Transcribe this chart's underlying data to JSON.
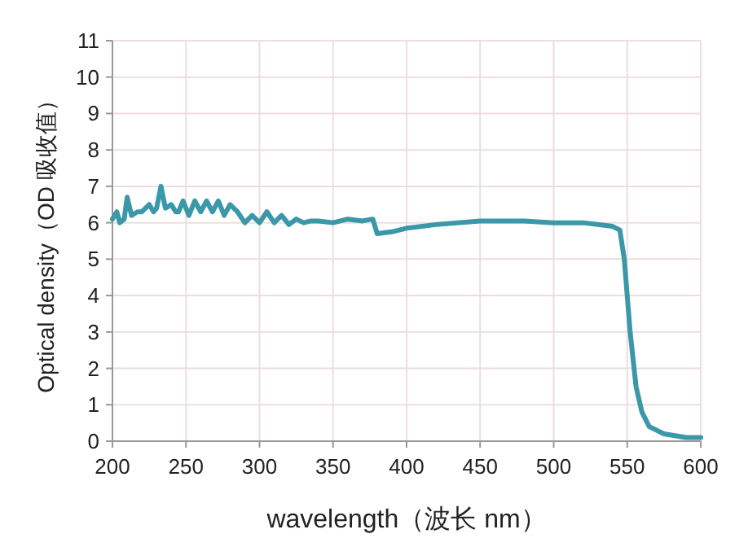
{
  "chart_data": {
    "type": "line",
    "xlabel": "wavelength（波长 nm）",
    "ylabel": "Optical density（OD 吸收值）",
    "xlim": [
      200,
      600
    ],
    "ylim": [
      0,
      11
    ],
    "xticks": [
      200,
      250,
      300,
      350,
      400,
      450,
      500,
      550,
      600
    ],
    "yticks": [
      0,
      1,
      2,
      3,
      4,
      5,
      6,
      7,
      8,
      9,
      10,
      11
    ],
    "grid": true,
    "series": [
      {
        "color": "#3b98a8",
        "x": [
          200,
          203,
          205,
          208,
          210,
          213,
          217,
          220,
          225,
          228,
          230,
          233,
          236,
          240,
          243,
          245,
          248,
          252,
          256,
          260,
          264,
          268,
          272,
          276,
          280,
          285,
          290,
          295,
          300,
          305,
          310,
          315,
          320,
          325,
          330,
          335,
          340,
          350,
          360,
          370,
          377,
          380,
          390,
          400,
          420,
          450,
          480,
          500,
          520,
          540,
          545,
          548,
          552,
          556,
          560,
          565,
          575,
          590,
          600
        ],
        "values": [
          6.1,
          6.3,
          6.0,
          6.1,
          6.7,
          6.2,
          6.3,
          6.3,
          6.5,
          6.3,
          6.4,
          7.0,
          6.4,
          6.5,
          6.3,
          6.3,
          6.6,
          6.2,
          6.6,
          6.3,
          6.6,
          6.3,
          6.6,
          6.2,
          6.5,
          6.3,
          6.0,
          6.2,
          6.0,
          6.3,
          6.0,
          6.2,
          5.95,
          6.1,
          6.0,
          6.05,
          6.05,
          6.0,
          6.1,
          6.05,
          6.1,
          5.7,
          5.75,
          5.85,
          5.95,
          6.05,
          6.05,
          6.0,
          6.0,
          5.9,
          5.8,
          5.0,
          3.0,
          1.5,
          0.8,
          0.4,
          0.2,
          0.1,
          0.1
        ]
      }
    ]
  }
}
